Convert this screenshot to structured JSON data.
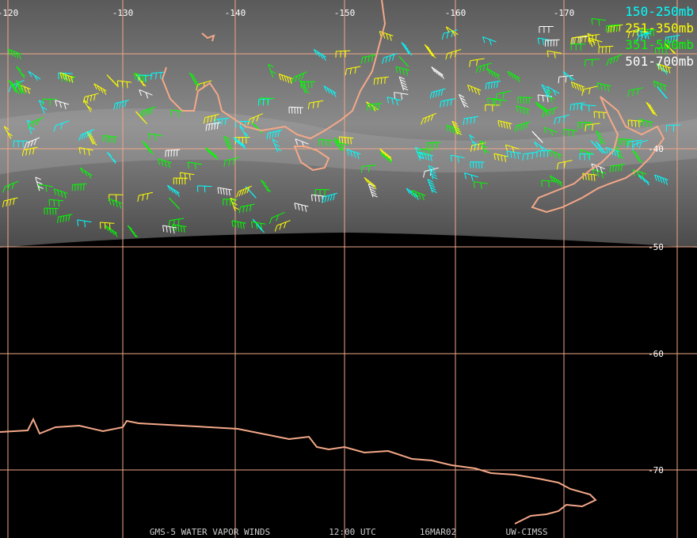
{
  "map": {
    "longitude_labels": [
      "-120",
      "-130",
      "-140",
      "-150",
      "-160",
      "-170"
    ],
    "latitude_labels": [
      "-40",
      "-50",
      "-60",
      "-70"
    ],
    "legend": [
      {
        "label": "150-250mb",
        "color": "#00ffff"
      },
      {
        "label": "251-350mb",
        "color": "#ffff00"
      },
      {
        "label": "351-500mb",
        "color": "#00ff00"
      },
      {
        "label": "501-700mb",
        "color": "#ffffff"
      }
    ],
    "footer": [
      "GMS-5 WATER VAPOR WINDS",
      "12:00 UTC",
      "16MAR02",
      "UW-CIMSS"
    ]
  }
}
